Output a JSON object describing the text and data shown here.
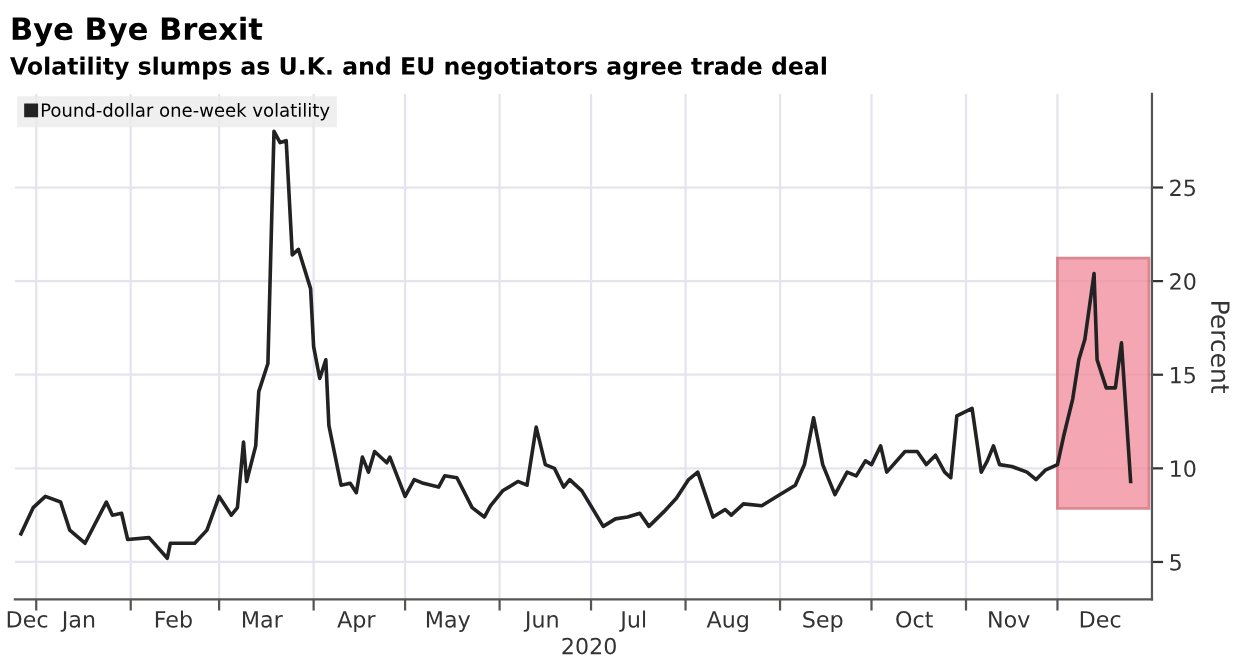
{
  "chart_data": {
    "type": "line",
    "title": "Bye Bye Brexit",
    "subtitle": "Volatility slumps as U.K. and EU negotiators agree trade deal",
    "xlabel": "2020",
    "ylabel": "Percent",
    "series": [
      {
        "name": "Pound-dollar one-week volatility",
        "color": "#222222",
        "x": [
          "2019-12-27",
          "2019-12-31",
          "2020-01-04",
          "2020-01-09",
          "2020-01-12",
          "2020-01-17",
          "2020-01-24",
          "2020-01-26",
          "2020-01-29",
          "2020-01-31",
          "2020-02-07",
          "2020-02-13",
          "2020-02-14",
          "2020-02-22",
          "2020-02-26",
          "2020-03-01",
          "2020-03-05",
          "2020-03-07",
          "2020-03-09",
          "2020-03-10",
          "2020-03-13",
          "2020-03-14",
          "2020-03-17",
          "2020-03-19",
          "2020-03-21",
          "2020-03-23",
          "2020-03-25",
          "2020-03-27",
          "2020-03-31",
          "2020-04-01",
          "2020-04-03",
          "2020-04-05",
          "2020-04-06",
          "2020-04-10",
          "2020-04-13",
          "2020-04-15",
          "2020-04-17",
          "2020-04-19",
          "2020-04-21",
          "2020-04-25",
          "2020-04-26",
          "2020-05-01",
          "2020-05-04",
          "2020-05-07",
          "2020-05-12",
          "2020-05-14",
          "2020-05-18",
          "2020-05-23",
          "2020-05-27",
          "2020-05-29",
          "2020-06-02",
          "2020-06-07",
          "2020-06-10",
          "2020-06-13",
          "2020-06-16",
          "2020-06-19",
          "2020-06-22",
          "2020-06-24",
          "2020-06-28",
          "2020-07-05",
          "2020-07-09",
          "2020-07-13",
          "2020-07-17",
          "2020-07-20",
          "2020-07-25",
          "2020-07-29",
          "2020-08-02",
          "2020-08-05",
          "2020-08-10",
          "2020-08-14",
          "2020-08-16",
          "2020-08-20",
          "2020-08-26",
          "2020-09-01",
          "2020-09-06",
          "2020-09-09",
          "2020-09-12",
          "2020-09-15",
          "2020-09-18",
          "2020-09-19",
          "2020-09-23",
          "2020-09-26",
          "2020-09-29",
          "2020-10-01",
          "2020-10-04",
          "2020-10-06",
          "2020-10-12",
          "2020-10-16",
          "2020-10-19",
          "2020-10-22",
          "2020-10-25",
          "2020-10-27",
          "2020-10-29",
          "2020-11-03",
          "2020-11-06",
          "2020-11-08",
          "2020-11-10",
          "2020-11-12",
          "2020-11-16",
          "2020-11-21",
          "2020-11-24",
          "2020-11-27",
          "2020-12-01",
          "2020-12-03",
          "2020-12-06",
          "2020-12-08",
          "2020-12-10",
          "2020-12-13",
          "2020-12-14",
          "2020-12-17",
          "2020-12-20",
          "2020-12-22",
          "2020-12-25"
        ],
        "values": [
          6.5,
          7.9,
          8.5,
          8.2,
          6.7,
          6.0,
          8.2,
          7.5,
          7.6,
          6.2,
          6.3,
          5.2,
          6.0,
          6.0,
          6.7,
          8.5,
          7.5,
          7.9,
          11.4,
          9.3,
          11.2,
          14.1,
          15.6,
          28.0,
          27.4,
          27.5,
          21.4,
          21.7,
          19.6,
          16.5,
          14.8,
          15.8,
          12.3,
          9.1,
          9.2,
          8.7,
          10.6,
          9.8,
          10.9,
          10.3,
          10.6,
          8.5,
          9.4,
          9.2,
          9.0,
          9.6,
          9.5,
          7.9,
          7.4,
          8.0,
          8.8,
          9.3,
          9.1,
          12.2,
          10.2,
          10.0,
          9.0,
          9.4,
          8.8,
          6.9,
          7.3,
          7.4,
          7.6,
          6.9,
          7.7,
          8.4,
          9.4,
          9.8,
          7.4,
          7.8,
          7.5,
          8.1,
          8.0,
          8.6,
          9.1,
          10.2,
          12.7,
          10.2,
          9.0,
          8.6,
          9.8,
          9.6,
          10.4,
          10.2,
          11.2,
          9.8,
          10.9,
          10.9,
          10.2,
          10.7,
          9.8,
          9.5,
          12.8,
          13.2,
          9.8,
          10.4,
          11.2,
          10.2,
          10.1,
          9.8,
          9.4,
          9.9,
          10.2,
          11.7,
          13.7,
          15.8,
          16.9,
          20.4,
          15.8,
          14.3,
          14.3,
          16.7,
          9.3
        ]
      }
    ],
    "xlim": [
      "2019-12-25",
      "2021-01-01"
    ],
    "xticks": [
      {
        "value": "2020-01-01",
        "label": null
      },
      {
        "value": "2020-02-01",
        "label": null
      },
      {
        "value": "2020-03-01",
        "label": null
      },
      {
        "value": "2020-04-01",
        "label": null
      },
      {
        "value": "2020-05-01",
        "label": null
      },
      {
        "value": "2020-06-01",
        "label": null
      },
      {
        "value": "2020-07-01",
        "label": null
      },
      {
        "value": "2020-08-01",
        "label": null
      },
      {
        "value": "2020-09-01",
        "label": null
      },
      {
        "value": "2020-10-01",
        "label": null
      },
      {
        "value": "2020-11-01",
        "label": null
      },
      {
        "value": "2020-12-01",
        "label": null
      },
      {
        "value": "2019-12-29",
        "label": "Dec"
      },
      {
        "value": "2020-01-15",
        "label": "Jan"
      },
      {
        "value": "2020-02-15",
        "label": "Feb"
      },
      {
        "value": "2020-03-15",
        "label": "Mar"
      },
      {
        "value": "2020-04-15",
        "label": "Apr"
      },
      {
        "value": "2020-05-15",
        "label": "May"
      },
      {
        "value": "2020-06-15",
        "label": "Jun"
      },
      {
        "value": "2020-07-15",
        "label": "Jul"
      },
      {
        "value": "2020-08-15",
        "label": "Aug"
      },
      {
        "value": "2020-09-15",
        "label": "Sep"
      },
      {
        "value": "2020-10-15",
        "label": "Oct"
      },
      {
        "value": "2020-11-15",
        "label": "Nov"
      },
      {
        "value": "2020-12-15",
        "label": "Dec"
      }
    ],
    "ylim": [
      3,
      30
    ],
    "yticks": [
      5,
      10,
      15,
      20,
      25
    ],
    "bands": [
      {
        "axis": "x",
        "from": "2020-12-01",
        "to": "2020-12-31",
        "label": null,
        "color": "#f08a98"
      }
    ],
    "grid": true,
    "legend": "top left",
    "line_style": "solid",
    "marker": "none"
  }
}
